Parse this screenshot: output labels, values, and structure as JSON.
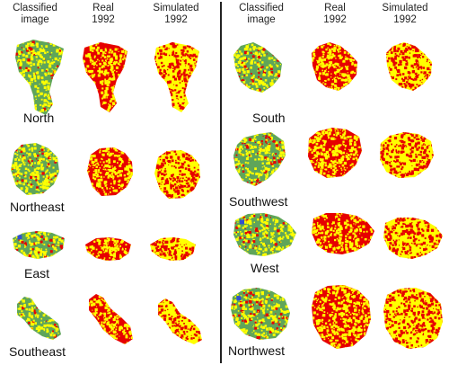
{
  "columns": {
    "classified": [
      "Classified",
      "image"
    ],
    "real": [
      "Real",
      "1992"
    ],
    "simulated": [
      "Simulated",
      "1992"
    ]
  },
  "regions": {
    "left": [
      "North",
      "Northeast",
      "East",
      "Southeast"
    ],
    "right": [
      "South",
      "Southwest",
      "West",
      "Northwest"
    ]
  },
  "colors": {
    "background": "#ffffff",
    "green": "#5fa55a",
    "yellow": "#ffff00",
    "red": "#e60000",
    "blue": "#3050d0",
    "divider": "#222222"
  }
}
